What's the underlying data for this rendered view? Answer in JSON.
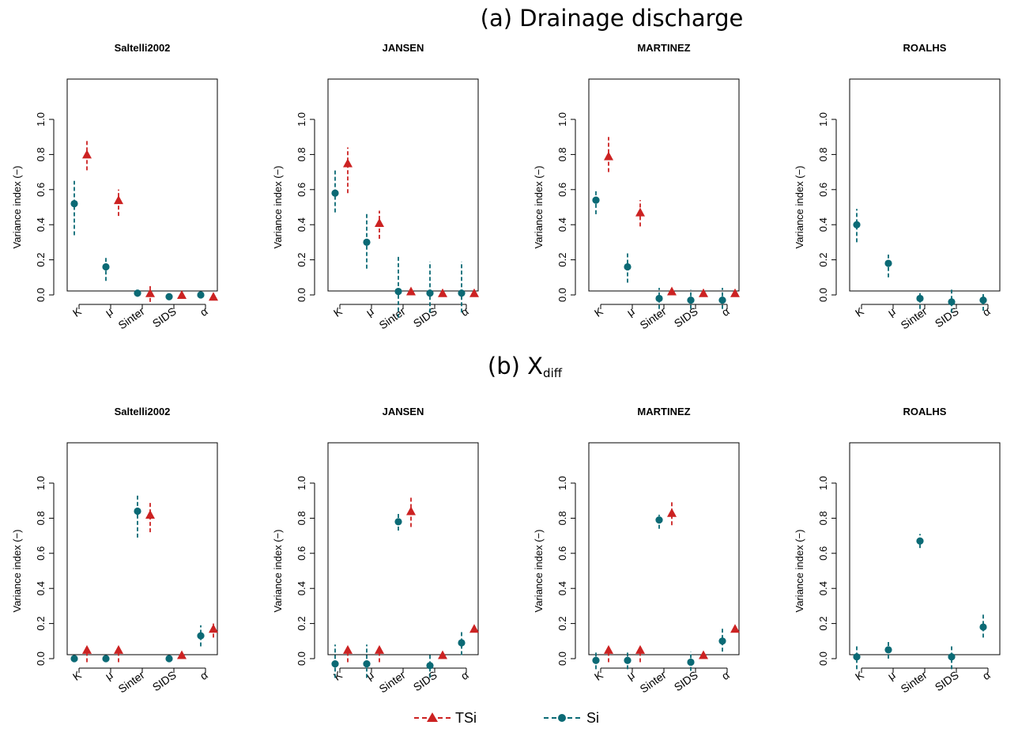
{
  "rows": [
    {
      "title_main": "(a) Drainage discharge",
      "title_sub": ""
    },
    {
      "title_main": "(b) X",
      "title_sub": "diff"
    }
  ],
  "legend": {
    "tsi_label": "TSi",
    "si_label": "Si"
  },
  "colors": {
    "tsi": "#cc2222",
    "si": "#0b6a75"
  },
  "chart_data": [
    {
      "type": "scatter",
      "row": "(a) Drainage discharge",
      "title": "Saltelli2002",
      "ylabel": "Variance index (−)",
      "ylim": [
        0,
        1
      ],
      "yticks": [
        "0.0",
        "0.2",
        "0.4",
        "0.6",
        "0.8",
        "1.0"
      ],
      "categories": [
        "K",
        "μ",
        "Sinter",
        "SIDS",
        "α"
      ],
      "series": [
        {
          "name": "TSi",
          "values": [
            0.8,
            0.54,
            0.01,
            0.0,
            -0.01
          ],
          "ci_low": [
            0.71,
            0.45,
            -0.04,
            -0.02,
            -0.02
          ],
          "ci_high": [
            0.88,
            0.6,
            0.05,
            0.02,
            0.01
          ]
        },
        {
          "name": "Si",
          "values": [
            0.52,
            0.16,
            0.01,
            -0.01,
            0.0
          ],
          "ci_low": [
            0.34,
            0.08,
            -0.01,
            -0.02,
            -0.01
          ],
          "ci_high": [
            0.65,
            0.22,
            0.02,
            0.01,
            0.01
          ]
        }
      ]
    },
    {
      "type": "scatter",
      "row": "(a) Drainage discharge",
      "title": "JANSEN",
      "ylabel": "Variance index (−)",
      "ylim": [
        0,
        1
      ],
      "yticks": [
        "0.0",
        "0.2",
        "0.4",
        "0.6",
        "0.8",
        "1.0"
      ],
      "categories": [
        "K",
        "μ",
        "Sinter",
        "SIDS",
        "α"
      ],
      "series": [
        {
          "name": "TSi",
          "values": [
            0.75,
            0.41,
            0.02,
            0.01,
            0.01
          ],
          "ci_low": [
            0.58,
            0.32,
            0.01,
            0.0,
            0.0
          ],
          "ci_high": [
            0.84,
            0.48,
            0.03,
            0.02,
            0.02
          ]
        },
        {
          "name": "Si",
          "values": [
            0.58,
            0.3,
            0.02,
            0.01,
            0.01
          ],
          "ci_low": [
            0.47,
            0.15,
            -0.13,
            -0.1,
            -0.1
          ],
          "ci_high": [
            0.72,
            0.47,
            0.23,
            0.19,
            0.19
          ]
        }
      ]
    },
    {
      "type": "scatter",
      "row": "(a) Drainage discharge",
      "title": "MARTINEZ",
      "ylabel": "Variance index (−)",
      "ylim": [
        0,
        1
      ],
      "yticks": [
        "0.0",
        "0.2",
        "0.4",
        "0.6",
        "0.8",
        "1.0"
      ],
      "categories": [
        "K",
        "μ",
        "Sinter",
        "SIDS",
        "α"
      ],
      "series": [
        {
          "name": "TSi",
          "values": [
            0.79,
            0.47,
            0.02,
            0.01,
            0.01
          ],
          "ci_low": [
            0.7,
            0.39,
            0.01,
            0.0,
            0.0
          ],
          "ci_high": [
            0.9,
            0.54,
            0.03,
            0.02,
            0.02
          ]
        },
        {
          "name": "Si",
          "values": [
            0.54,
            0.16,
            -0.02,
            -0.03,
            -0.03
          ],
          "ci_low": [
            0.46,
            0.07,
            -0.08,
            -0.08,
            -0.08
          ],
          "ci_high": [
            0.6,
            0.25,
            0.04,
            0.03,
            0.04
          ]
        }
      ]
    },
    {
      "type": "scatter",
      "row": "(a) Drainage discharge",
      "title": "ROALHS",
      "ylabel": "Variance index (−)",
      "ylim": [
        0,
        1
      ],
      "yticks": [
        "0.0",
        "0.2",
        "0.4",
        "0.6",
        "0.8",
        "1.0"
      ],
      "categories": [
        "K",
        "μ",
        "Sinter",
        "SIDS",
        "α"
      ],
      "series": [
        {
          "name": "Si",
          "values": [
            0.4,
            0.18,
            -0.02,
            -0.04,
            -0.03
          ],
          "ci_low": [
            0.3,
            0.1,
            -0.08,
            -0.1,
            -0.09
          ],
          "ci_high": [
            0.49,
            0.23,
            0.01,
            0.03,
            0.01
          ]
        }
      ]
    },
    {
      "type": "scatter",
      "row": "(b) Xdiff",
      "title": "Saltelli2002",
      "ylabel": "Variance index (−)",
      "ylim": [
        0,
        1
      ],
      "yticks": [
        "0.0",
        "0.2",
        "0.4",
        "0.6",
        "0.8",
        "1.0"
      ],
      "categories": [
        "K",
        "μ",
        "Sinter",
        "SIDS",
        "α"
      ],
      "series": [
        {
          "name": "TSi",
          "values": [
            0.05,
            0.05,
            0.82,
            0.02,
            0.17
          ],
          "ci_low": [
            -0.02,
            -0.02,
            0.72,
            0.0,
            0.12
          ],
          "ci_high": [
            0.06,
            0.06,
            0.9,
            0.03,
            0.2
          ]
        },
        {
          "name": "Si",
          "values": [
            0.0,
            0.0,
            0.84,
            0.0,
            0.13
          ],
          "ci_low": [
            -0.01,
            -0.01,
            0.69,
            -0.01,
            0.07
          ],
          "ci_high": [
            0.01,
            0.01,
            0.94,
            0.01,
            0.19
          ]
        }
      ]
    },
    {
      "type": "scatter",
      "row": "(b) Xdiff",
      "title": "JANSEN",
      "ylabel": "Variance index (−)",
      "ylim": [
        0,
        1
      ],
      "yticks": [
        "0.0",
        "0.2",
        "0.4",
        "0.6",
        "0.8",
        "1.0"
      ],
      "categories": [
        "K",
        "μ",
        "Sinter",
        "SIDS",
        "α"
      ],
      "series": [
        {
          "name": "TSi",
          "values": [
            0.05,
            0.05,
            0.84,
            0.02,
            0.17
          ],
          "ci_low": [
            -0.02,
            -0.02,
            0.75,
            0.01,
            0.16
          ],
          "ci_high": [
            0.06,
            0.06,
            0.92,
            0.03,
            0.19
          ]
        },
        {
          "name": "Si",
          "values": [
            -0.03,
            -0.03,
            0.78,
            -0.04,
            0.09
          ],
          "ci_low": [
            -0.11,
            -0.11,
            0.73,
            -0.11,
            0.02
          ],
          "ci_high": [
            0.08,
            0.08,
            0.83,
            0.03,
            0.16
          ]
        }
      ]
    },
    {
      "type": "scatter",
      "row": "(b) Xdiff",
      "title": "MARTINEZ",
      "ylabel": "Variance index (−)",
      "ylim": [
        0,
        1
      ],
      "yticks": [
        "0.0",
        "0.2",
        "0.4",
        "0.6",
        "0.8",
        "1.0"
      ],
      "categories": [
        "K",
        "μ",
        "Sinter",
        "SIDS",
        "α"
      ],
      "series": [
        {
          "name": "TSi",
          "values": [
            0.05,
            0.05,
            0.83,
            0.02,
            0.17
          ],
          "ci_low": [
            -0.02,
            -0.02,
            0.76,
            0.01,
            0.16
          ],
          "ci_high": [
            0.06,
            0.06,
            0.9,
            0.03,
            0.19
          ]
        },
        {
          "name": "Si",
          "values": [
            -0.01,
            -0.01,
            0.79,
            -0.02,
            0.1
          ],
          "ci_low": [
            -0.06,
            -0.06,
            0.74,
            -0.07,
            0.04
          ],
          "ci_high": [
            0.04,
            0.04,
            0.82,
            0.04,
            0.17
          ]
        }
      ]
    },
    {
      "type": "scatter",
      "row": "(b) Xdiff",
      "title": "ROALHS",
      "ylabel": "Variance index (−)",
      "ylim": [
        0,
        1
      ],
      "yticks": [
        "0.0",
        "0.2",
        "0.4",
        "0.6",
        "0.8",
        "1.0"
      ],
      "categories": [
        "K",
        "μ",
        "Sinter",
        "SIDS",
        "α"
      ],
      "series": [
        {
          "name": "Si",
          "values": [
            0.01,
            0.05,
            0.67,
            0.01,
            0.18
          ],
          "ci_low": [
            -0.06,
            0.0,
            0.63,
            -0.06,
            0.12
          ],
          "ci_high": [
            0.07,
            0.1,
            0.71,
            0.07,
            0.26
          ]
        }
      ]
    }
  ]
}
